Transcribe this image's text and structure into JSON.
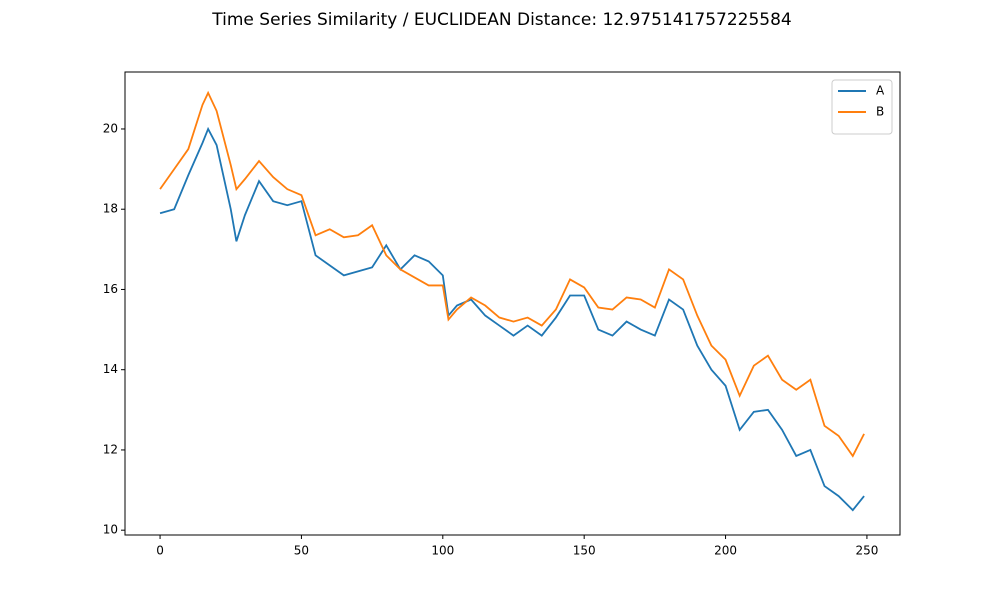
{
  "chart_data": {
    "type": "line",
    "title": "Time Series Similarity / EUCLIDEAN Distance: 12.975141757225584",
    "x": [
      0,
      5,
      10,
      15,
      17,
      20,
      25,
      27,
      30,
      35,
      40,
      45,
      50,
      55,
      60,
      65,
      70,
      75,
      80,
      85,
      90,
      95,
      100,
      102,
      105,
      110,
      115,
      120,
      125,
      130,
      135,
      140,
      145,
      150,
      155,
      160,
      165,
      170,
      175,
      180,
      185,
      190,
      195,
      200,
      205,
      210,
      215,
      220,
      225,
      230,
      235,
      240,
      245,
      249
    ],
    "series": [
      {
        "name": "A",
        "color": "#1f77b4",
        "values": [
          17.9,
          18.0,
          18.85,
          19.65,
          20.0,
          19.6,
          18.0,
          17.2,
          17.85,
          18.7,
          18.2,
          18.1,
          18.2,
          16.85,
          16.6,
          16.35,
          16.45,
          16.55,
          17.1,
          16.5,
          16.85,
          16.7,
          16.35,
          15.35,
          15.6,
          15.75,
          15.35,
          15.1,
          14.85,
          15.1,
          14.85,
          15.3,
          15.85,
          15.85,
          15.0,
          14.85,
          15.2,
          15.0,
          14.85,
          15.75,
          15.5,
          14.6,
          14.0,
          13.6,
          12.5,
          12.95,
          13.0,
          12.5,
          11.85,
          12.0,
          11.1,
          10.85,
          10.5,
          10.85
        ]
      },
      {
        "name": "B",
        "color": "#ff7f0e",
        "values": [
          18.5,
          19.0,
          19.5,
          20.6,
          20.9,
          20.45,
          19.1,
          18.5,
          18.75,
          19.2,
          18.8,
          18.5,
          18.35,
          17.35,
          17.5,
          17.3,
          17.35,
          17.6,
          16.85,
          16.5,
          16.3,
          16.1,
          16.1,
          15.25,
          15.5,
          15.8,
          15.6,
          15.3,
          15.2,
          15.3,
          15.1,
          15.5,
          16.25,
          16.05,
          15.55,
          15.5,
          15.8,
          15.75,
          15.55,
          16.5,
          16.25,
          15.35,
          14.6,
          14.25,
          13.35,
          14.1,
          14.35,
          13.75,
          13.5,
          13.75,
          12.6,
          12.35,
          11.85,
          12.4
        ]
      }
    ],
    "xlim": [
      -12.4,
      261.7
    ],
    "xticks": [
      0,
      50,
      100,
      150,
      200,
      250
    ],
    "ylim": [
      9.88,
      21.42
    ],
    "yticks": [
      10,
      12,
      14,
      16,
      18,
      20
    ],
    "grid": false,
    "legend": "upper right"
  }
}
